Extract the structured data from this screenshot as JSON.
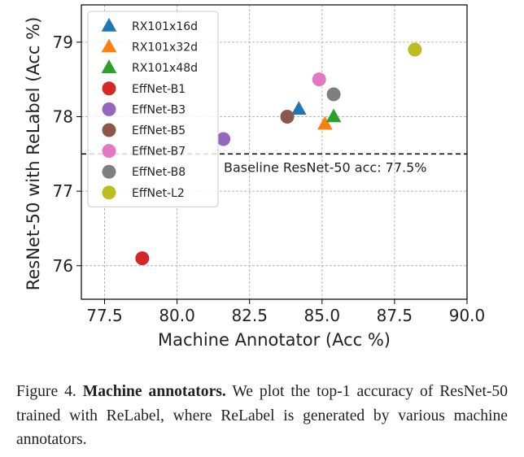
{
  "chart_data": {
    "type": "scatter",
    "xlabel": "Machine Annotator (Acc %)",
    "ylabel": "ResNet-50 with ReLabel (Acc %)",
    "xlim": [
      76.7,
      90.0
    ],
    "ylim": [
      75.55,
      79.5
    ],
    "xticks": [
      77.5,
      80.0,
      82.5,
      85.0,
      87.5,
      90.0
    ],
    "yticks": [
      76,
      77,
      78,
      79
    ],
    "xtick_labels": [
      "77.5",
      "80.0",
      "82.5",
      "85.0",
      "87.5",
      "90.0"
    ],
    "ytick_labels": [
      "76",
      "77",
      "78",
      "79"
    ],
    "grid": true,
    "legend_position": "top-left",
    "series": [
      {
        "name": "RX101x16d",
        "marker": "triangle",
        "color": "#1f77b4",
        "x": 84.2,
        "y": 78.1
      },
      {
        "name": "RX101x32d",
        "marker": "triangle",
        "color": "#ff7f0e",
        "x": 85.1,
        "y": 77.9
      },
      {
        "name": "RX101x48d",
        "marker": "triangle",
        "color": "#2ca02c",
        "x": 85.4,
        "y": 78.0
      },
      {
        "name": "EffNet-B1",
        "marker": "circle",
        "color": "#d62728",
        "x": 78.8,
        "y": 76.1
      },
      {
        "name": "EffNet-B3",
        "marker": "circle",
        "color": "#9467bd",
        "x": 81.6,
        "y": 77.7
      },
      {
        "name": "EffNet-B5",
        "marker": "circle",
        "color": "#8c564b",
        "x": 83.8,
        "y": 78.0
      },
      {
        "name": "EffNet-B7",
        "marker": "circle",
        "color": "#e377c2",
        "x": 84.9,
        "y": 78.5
      },
      {
        "name": "EffNet-B8",
        "marker": "circle",
        "color": "#7f7f7f",
        "x": 85.4,
        "y": 78.3
      },
      {
        "name": "EffNet-L2",
        "marker": "circle",
        "color": "#bcbd22",
        "x": 88.2,
        "y": 78.9
      }
    ],
    "baseline": {
      "y": 77.5,
      "label": "Baseline ResNet-50 acc: 77.5%",
      "style": "dashed"
    }
  },
  "caption": {
    "label": "Figure 4.",
    "bold": "Machine annotators.",
    "text": "We plot the top-1 accuracy of ResNet-50 trained with ReLabel, where ReLabel is generated by various machine annotators."
  }
}
